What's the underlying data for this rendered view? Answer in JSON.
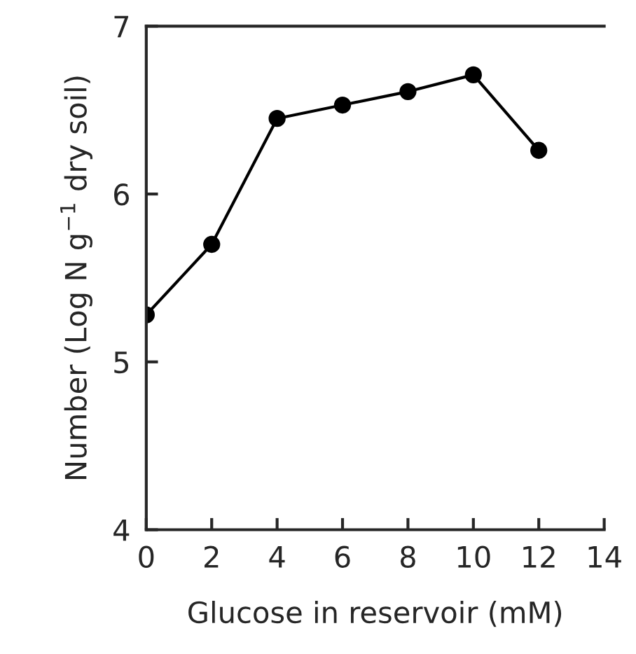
{
  "chart_data": {
    "type": "line",
    "xlabel": "Glucose in reservoir (mM)",
    "ylabel": "Number (Log N g$^{−1}$ dry soil)",
    "x": [
      0,
      2,
      4,
      6,
      8,
      10,
      12
    ],
    "series": [
      {
        "color": "#000000",
        "values": [
          5.28,
          5.7,
          6.45,
          6.53,
          6.61,
          6.71,
          6.26
        ]
      }
    ],
    "xlim": [
      0,
      14
    ],
    "xticks": [
      0,
      2,
      4,
      6,
      8,
      10,
      12,
      14
    ],
    "ylim": [
      4,
      7
    ],
    "yticks": [
      4,
      5,
      6,
      7
    ],
    "marker": "circle",
    "line_style": "solid",
    "grid": false,
    "legend": false
  }
}
